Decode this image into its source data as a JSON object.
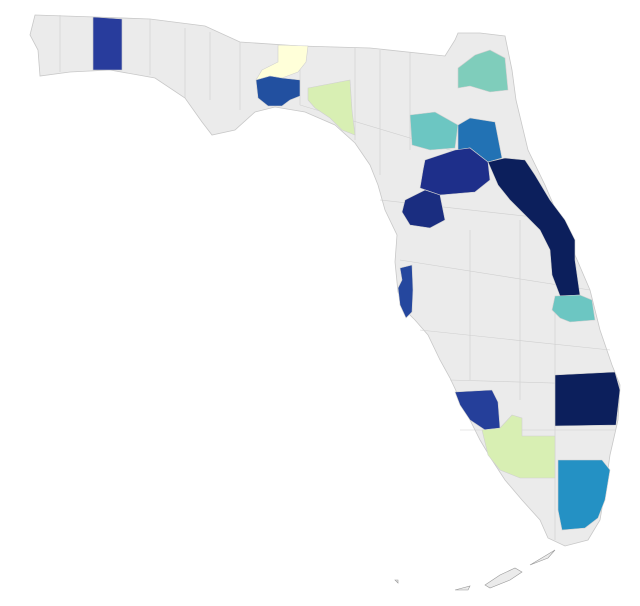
{
  "map": {
    "regions": [
      {
        "color": "#283c9c"
      },
      {
        "color": "#ffffd9"
      },
      {
        "color": "#2250a0"
      },
      {
        "color": "#d8efb3"
      },
      {
        "color": "#7fcdbb"
      },
      {
        "color": "#6cc6c2"
      },
      {
        "color": "#2272b4"
      },
      {
        "color": "#1e2f8a"
      },
      {
        "color": "#0c1f5c"
      },
      {
        "color": "#1a2d80"
      },
      {
        "color": "#25479e"
      },
      {
        "color": "#6cc6c2"
      },
      {
        "color": "#0c1f5c"
      },
      {
        "color": "#253f9a"
      },
      {
        "color": "#d8efb3"
      },
      {
        "color": "#2491c4"
      }
    ]
  }
}
